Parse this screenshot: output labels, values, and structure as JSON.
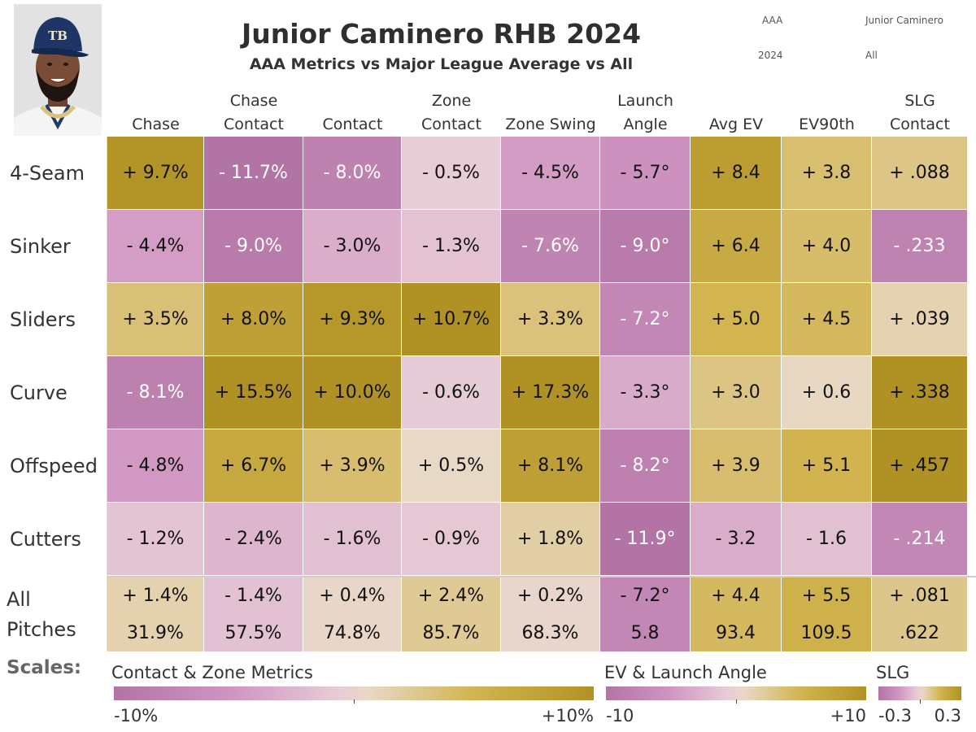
{
  "title": "Junior Caminero RHB 2024",
  "subtitle": "AAA Metrics vs Major League Average vs All",
  "filters": {
    "level": "AAA",
    "player": "Junior Caminero",
    "year": "2024",
    "pitch_filter": "All"
  },
  "photo": {
    "logo_text": "TB"
  },
  "colors": {
    "purple": "#b173a4",
    "light_pink": "#e6c9d2",
    "neutral": "#e8d8c4",
    "gold": "#b09224"
  },
  "chart_data": {
    "type": "heatmap",
    "columns": [
      {
        "line1": "",
        "line2": "Chase",
        "scale": "pct"
      },
      {
        "line1": "Chase",
        "line2": "Contact",
        "scale": "pct"
      },
      {
        "line1": "",
        "line2": "Contact",
        "scale": "pct"
      },
      {
        "line1": "Zone",
        "line2": "Contact",
        "scale": "pct"
      },
      {
        "line1": "",
        "line2": "Zone Swing",
        "scale": "pct"
      },
      {
        "line1": "Launch",
        "line2": "Angle",
        "scale": "la"
      },
      {
        "line1": "",
        "line2": "Avg EV",
        "scale": "ev"
      },
      {
        "line1": "",
        "line2": "EV90th",
        "scale": "ev"
      },
      {
        "line1": "SLG",
        "line2": "Contact",
        "scale": "slg"
      }
    ],
    "rows": [
      {
        "label": "4-Seam",
        "labels": [
          "+ 9.7%",
          "- 11.7%",
          "- 8.0%",
          "- 0.5%",
          "- 4.5%",
          "- 5.7°",
          "+ 8.4",
          "+ 3.8",
          "+ .088"
        ],
        "values": [
          9.7,
          -11.7,
          -8.0,
          -0.5,
          -4.5,
          -5.7,
          8.4,
          3.8,
          0.088
        ]
      },
      {
        "label": "Sinker",
        "labels": [
          "- 4.4%",
          "- 9.0%",
          "- 3.0%",
          "- 1.3%",
          "- 7.6%",
          "- 9.0°",
          "+ 6.4",
          "+ 4.0",
          "- .233"
        ],
        "values": [
          -4.4,
          -9.0,
          -3.0,
          -1.3,
          -7.6,
          -9.0,
          6.4,
          4.0,
          -0.233
        ]
      },
      {
        "label": "Sliders",
        "labels": [
          "+ 3.5%",
          "+ 8.0%",
          "+ 9.3%",
          "+ 10.7%",
          "+ 3.3%",
          "- 7.2°",
          "+ 5.0",
          "+ 4.5",
          "+ .039"
        ],
        "values": [
          3.5,
          8.0,
          9.3,
          10.7,
          3.3,
          -7.2,
          5.0,
          4.5,
          0.039
        ]
      },
      {
        "label": "Curve",
        "labels": [
          "- 8.1%",
          "+ 15.5%",
          "+ 10.0%",
          "- 0.6%",
          "+ 17.3%",
          "- 3.3°",
          "+ 3.0",
          "+ 0.6",
          "+ .338"
        ],
        "values": [
          -8.1,
          15.5,
          10.0,
          -0.6,
          17.3,
          -3.3,
          3.0,
          0.6,
          0.338
        ]
      },
      {
        "label": "Offspeed",
        "labels": [
          "- 4.8%",
          "+ 6.7%",
          "+ 3.9%",
          "+ 0.5%",
          "+ 8.1%",
          "- 8.2°",
          "+ 3.9",
          "+ 5.1",
          "+ .457"
        ],
        "values": [
          -4.8,
          6.7,
          3.9,
          0.5,
          8.1,
          -8.2,
          3.9,
          5.1,
          0.457
        ]
      },
      {
        "label": "Cutters",
        "labels": [
          "- 1.2%",
          "- 2.4%",
          "- 1.6%",
          "- 0.9%",
          "+ 1.8%",
          "- 11.9°",
          "- 3.2",
          "- 1.6",
          "- .214"
        ],
        "values": [
          -1.2,
          -2.4,
          -1.6,
          -0.9,
          1.8,
          -11.9,
          -3.2,
          -1.6,
          -0.214
        ]
      }
    ],
    "totals": {
      "label_line1": "All",
      "label_line2": "Pitches",
      "diff_labels": [
        "+ 1.4%",
        "- 1.4%",
        "+ 0.4%",
        "+ 2.4%",
        "+ 0.2%",
        "- 7.2°",
        "+ 4.4",
        "+ 5.5",
        "+ .081"
      ],
      "diff_values": [
        1.4,
        -1.4,
        0.4,
        2.4,
        0.2,
        -7.2,
        4.4,
        5.5,
        0.081
      ],
      "value_labels": [
        "31.9%",
        "57.5%",
        "74.8%",
        "85.7%",
        "68.3%",
        "5.8",
        "93.4",
        "109.5",
        ".622"
      ]
    },
    "scales": {
      "pct": {
        "min": -10,
        "max": 10
      },
      "la": {
        "min": -10,
        "max": 10
      },
      "ev": {
        "min": -10,
        "max": 10
      },
      "slg": {
        "min": -0.3,
        "max": 0.3
      }
    }
  },
  "legend": {
    "heading": "Scales:",
    "groups": [
      {
        "title": "Contact & Zone Metrics",
        "min_label": "-10%",
        "max_label": "+10%"
      },
      {
        "title": "EV & Launch Angle",
        "min_label": "-10",
        "max_label": "+10"
      },
      {
        "title": "SLG",
        "min_label": "-0.3",
        "max_label": "0.3"
      }
    ]
  }
}
